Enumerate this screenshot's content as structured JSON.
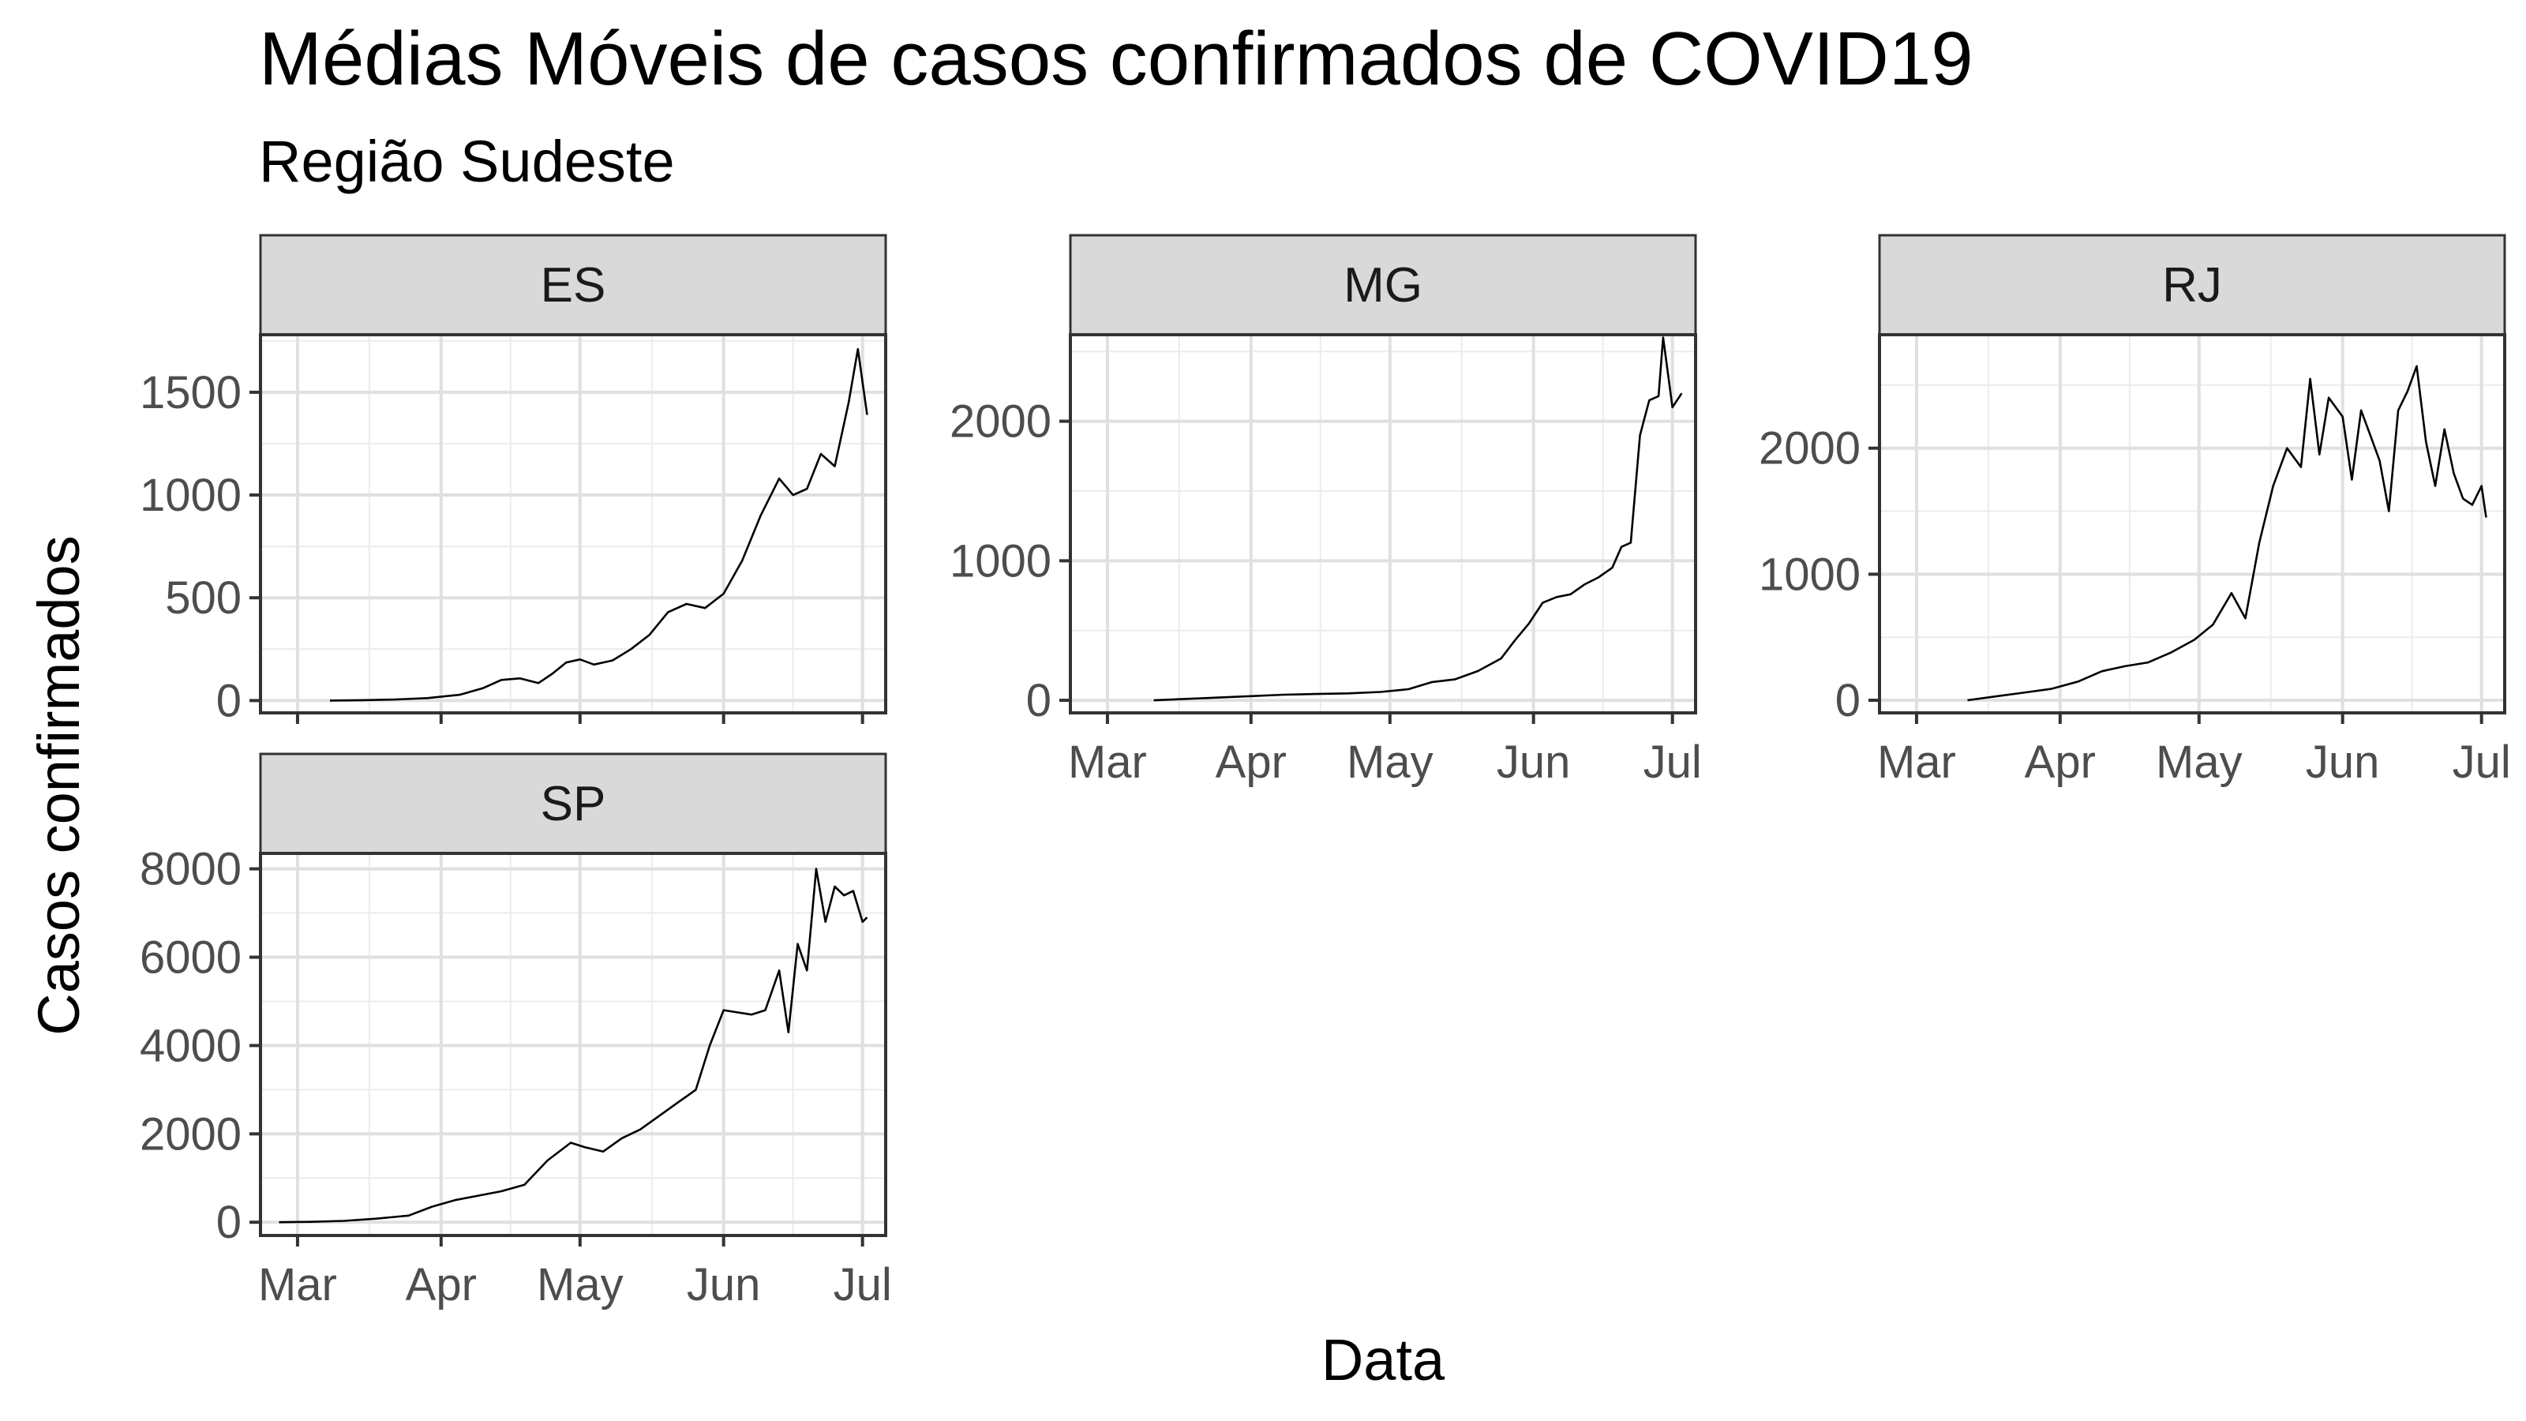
{
  "title": "Médias Móveis de casos confirmados de COVID19",
  "subtitle": "Região Sudeste",
  "chart_data": {
    "type": "line",
    "title": "Médias Móveis de casos confirmados de COVID19",
    "subtitle": "Região Sudeste",
    "xlabel": "Data",
    "ylabel": "Casos confirmados",
    "grid": true,
    "x_ticks": [
      {
        "label": "Mar",
        "date": "2020-03-01"
      },
      {
        "label": "Apr",
        "date": "2020-04-01"
      },
      {
        "label": "May",
        "date": "2020-05-01"
      },
      {
        "label": "Jun",
        "date": "2020-06-01"
      },
      {
        "label": "Jul",
        "date": "2020-07-01"
      }
    ],
    "xlim": [
      "2020-02-22",
      "2020-07-06"
    ],
    "panels": [
      {
        "name": "ES",
        "ylim": [
          -60,
          1780
        ],
        "y_ticks": [
          0,
          500,
          1000,
          1500
        ],
        "series": {
          "x": [
            "2020-03-08",
            "2020-03-15",
            "2020-03-22",
            "2020-03-29",
            "2020-04-05",
            "2020-04-10",
            "2020-04-14",
            "2020-04-18",
            "2020-04-22",
            "2020-04-25",
            "2020-04-28",
            "2020-05-01",
            "2020-05-04",
            "2020-05-08",
            "2020-05-12",
            "2020-05-16",
            "2020-05-20",
            "2020-05-24",
            "2020-05-28",
            "2020-06-01",
            "2020-06-05",
            "2020-06-09",
            "2020-06-13",
            "2020-06-16",
            "2020-06-19",
            "2020-06-22",
            "2020-06-25",
            "2020-06-28",
            "2020-06-30",
            "2020-07-02"
          ],
          "y": [
            0,
            2,
            5,
            12,
            28,
            60,
            100,
            108,
            85,
            130,
            185,
            200,
            175,
            195,
            250,
            320,
            430,
            470,
            450,
            520,
            680,
            900,
            1080,
            1000,
            1030,
            1200,
            1140,
            1450,
            1710,
            1390
          ]
        }
      },
      {
        "name": "MG",
        "ylim": [
          -90,
          2620
        ],
        "y_ticks": [
          0,
          1000,
          2000
        ],
        "series": {
          "x": [
            "2020-03-11",
            "2020-03-18",
            "2020-03-25",
            "2020-04-01",
            "2020-04-08",
            "2020-04-15",
            "2020-04-22",
            "2020-04-29",
            "2020-05-05",
            "2020-05-10",
            "2020-05-15",
            "2020-05-20",
            "2020-05-25",
            "2020-05-28",
            "2020-05-31",
            "2020-06-03",
            "2020-06-06",
            "2020-06-09",
            "2020-06-12",
            "2020-06-15",
            "2020-06-18",
            "2020-06-20",
            "2020-06-22",
            "2020-06-24",
            "2020-06-26",
            "2020-06-28",
            "2020-06-29",
            "2020-07-01",
            "2020-07-03"
          ],
          "y": [
            0,
            10,
            20,
            30,
            40,
            45,
            50,
            60,
            80,
            130,
            150,
            210,
            300,
            430,
            550,
            700,
            740,
            760,
            830,
            880,
            950,
            1100,
            1130,
            1900,
            2150,
            2180,
            2600,
            2100,
            2200
          ]
        }
      },
      {
        "name": "RJ",
        "ylim": [
          -100,
          2900
        ],
        "y_ticks": [
          0,
          1000,
          2000
        ],
        "series": {
          "x": [
            "2020-03-12",
            "2020-03-18",
            "2020-03-24",
            "2020-03-30",
            "2020-04-05",
            "2020-04-10",
            "2020-04-15",
            "2020-04-20",
            "2020-04-25",
            "2020-04-30",
            "2020-05-04",
            "2020-05-08",
            "2020-05-11",
            "2020-05-14",
            "2020-05-17",
            "2020-05-20",
            "2020-05-23",
            "2020-05-25",
            "2020-05-27",
            "2020-05-29",
            "2020-06-01",
            "2020-06-03",
            "2020-06-05",
            "2020-06-07",
            "2020-06-09",
            "2020-06-11",
            "2020-06-13",
            "2020-06-15",
            "2020-06-17",
            "2020-06-19",
            "2020-06-21",
            "2020-06-23",
            "2020-06-25",
            "2020-06-27",
            "2020-06-29",
            "2020-07-01",
            "2020-07-02"
          ],
          "y": [
            0,
            30,
            60,
            90,
            150,
            230,
            270,
            300,
            380,
            480,
            600,
            850,
            650,
            1250,
            1700,
            2000,
            1850,
            2550,
            1950,
            2400,
            2250,
            1750,
            2300,
            2100,
            1900,
            1500,
            2300,
            2450,
            2650,
            2050,
            1700,
            2150,
            1800,
            1600,
            1550,
            1700,
            1450
          ]
        }
      },
      {
        "name": "SP",
        "ylim": [
          -300,
          8350
        ],
        "y_ticks": [
          0,
          2000,
          4000,
          6000,
          8000
        ],
        "series": {
          "x": [
            "2020-02-26",
            "2020-03-04",
            "2020-03-11",
            "2020-03-18",
            "2020-03-25",
            "2020-03-30",
            "2020-04-04",
            "2020-04-09",
            "2020-04-14",
            "2020-04-19",
            "2020-04-24",
            "2020-04-29",
            "2020-05-02",
            "2020-05-06",
            "2020-05-10",
            "2020-05-14",
            "2020-05-18",
            "2020-05-22",
            "2020-05-26",
            "2020-05-29",
            "2020-06-01",
            "2020-06-04",
            "2020-06-07",
            "2020-06-10",
            "2020-06-13",
            "2020-06-15",
            "2020-06-17",
            "2020-06-19",
            "2020-06-21",
            "2020-06-23",
            "2020-06-25",
            "2020-06-27",
            "2020-06-29",
            "2020-07-01",
            "2020-07-02"
          ],
          "y": [
            0,
            10,
            30,
            80,
            150,
            350,
            500,
            600,
            700,
            850,
            1400,
            1800,
            1700,
            1600,
            1900,
            2100,
            2400,
            2700,
            3000,
            4000,
            4800,
            4750,
            4700,
            4800,
            5700,
            4300,
            6300,
            5700,
            8000,
            6800,
            7600,
            7400,
            7500,
            6800,
            6900
          ]
        }
      }
    ]
  }
}
